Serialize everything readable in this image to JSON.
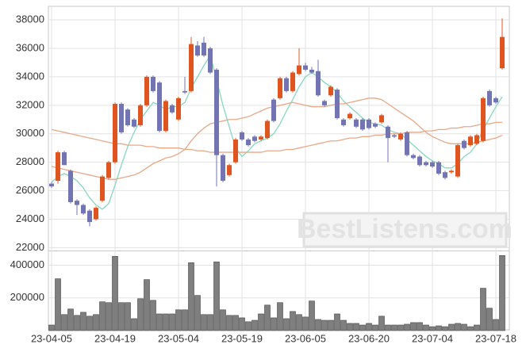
{
  "chart_data": {
    "type": "candlestick",
    "categories": [
      "23-04-05",
      null,
      null,
      null,
      null,
      null,
      null,
      null,
      null,
      null,
      "23-04-19",
      null,
      null,
      null,
      null,
      null,
      null,
      null,
      null,
      null,
      "23-05-04",
      null,
      null,
      null,
      null,
      null,
      null,
      null,
      null,
      null,
      "23-05-19",
      null,
      null,
      null,
      null,
      null,
      null,
      null,
      null,
      null,
      "23-06-05",
      null,
      null,
      null,
      null,
      null,
      null,
      null,
      null,
      null,
      "23-06-20",
      null,
      null,
      null,
      null,
      null,
      null,
      null,
      null,
      null,
      "23-07-04",
      null,
      null,
      null,
      null,
      null,
      null,
      null,
      null,
      null,
      "23-07-18",
      null
    ],
    "open": [
      26500,
      26700,
      28700,
      27400,
      25300,
      25000,
      24600,
      24000,
      25300,
      26900,
      28000,
      32100,
      31700,
      31000,
      30600,
      32000,
      34000,
      33600,
      30200,
      32000,
      31000,
      33000,
      33000,
      36200,
      36400,
      36000,
      34500,
      28500,
      27100,
      28000,
      30100,
      29600,
      29800,
      29600,
      29700,
      32400,
      32500,
      33900,
      33000,
      34200,
      34800,
      34500,
      34400,
      32300,
      32700,
      33100,
      31000,
      31100,
      31000,
      31000,
      31000,
      30700,
      30800,
      30500,
      29900,
      29600,
      30100,
      28500,
      28400,
      28000,
      28000,
      28000,
      27300,
      27300,
      27000,
      29500,
      29200,
      29300,
      29500,
      33000,
      32500,
      34600
    ],
    "high": [
      26600,
      28800,
      28800,
      27500,
      25400,
      25100,
      24700,
      24900,
      27100,
      28100,
      32200,
      32200,
      31800,
      31100,
      32100,
      34100,
      34100,
      33700,
      32400,
      32100,
      32600,
      34000,
      36800,
      36500,
      36800,
      36100,
      34600,
      28600,
      27900,
      29700,
      30200,
      29700,
      29900,
      29900,
      31000,
      32500,
      34000,
      34000,
      34400,
      36000,
      35000,
      34700,
      35200,
      32400,
      33400,
      33200,
      31100,
      31500,
      31100,
      31100,
      31100,
      30800,
      31400,
      30600,
      30000,
      30100,
      30200,
      28600,
      28500,
      28100,
      28100,
      28100,
      27400,
      27500,
      29300,
      29600,
      29900,
      30000,
      32600,
      33100,
      32600,
      38100
    ],
    "low": [
      26200,
      26500,
      27800,
      25100,
      24300,
      24300,
      23500,
      23900,
      25200,
      26800,
      27900,
      30000,
      30500,
      30400,
      30500,
      31900,
      32900,
      30100,
      30100,
      31400,
      30900,
      32800,
      32900,
      35400,
      35400,
      34200,
      26300,
      26600,
      27000,
      27900,
      29500,
      29100,
      29400,
      29500,
      29600,
      30800,
      32400,
      32900,
      32900,
      34100,
      34400,
      34200,
      32600,
      31900,
      32600,
      31000,
      30500,
      31000,
      30400,
      30200,
      30300,
      30400,
      30700,
      28000,
      29700,
      29500,
      28400,
      28200,
      27700,
      27700,
      27600,
      27100,
      26800,
      27200,
      26900,
      28900,
      29100,
      29200,
      29400,
      31900,
      32100,
      34500
    ],
    "close": [
      26300,
      28700,
      27800,
      25200,
      25000,
      24400,
      23800,
      24800,
      27000,
      28000,
      32100,
      30100,
      30600,
      30500,
      32000,
      34000,
      33000,
      30200,
      32300,
      31500,
      32500,
      32900,
      36300,
      35500,
      35500,
      34300,
      28500,
      26700,
      27800,
      29600,
      29600,
      29200,
      29500,
      29800,
      30900,
      30900,
      33900,
      33000,
      34300,
      34800,
      34500,
      34300,
      32700,
      32000,
      33300,
      31100,
      30600,
      31400,
      30500,
      30300,
      30400,
      30500,
      31300,
      29700,
      29800,
      30000,
      28500,
      28300,
      27800,
      27800,
      27700,
      27200,
      26900,
      27400,
      29200,
      29000,
      29800,
      29900,
      32500,
      32000,
      32200,
      36800
    ],
    "up_color": "#e05420",
    "down_color": "#7274b4",
    "ylim": [
      21800,
      38950
    ],
    "yticks": [
      22000,
      24000,
      26000,
      28000,
      30000,
      32000,
      34000,
      36000,
      38000
    ],
    "moving_averages": [
      {
        "color": "#86d8c0",
        "values": [
          26600,
          27000,
          27200,
          27000,
          26700,
          26200,
          25500,
          25000,
          24700,
          25100,
          26400,
          27800,
          29100,
          30100,
          31000,
          31600,
          32200,
          32000,
          31700,
          31900,
          31900,
          32200,
          33200,
          34000,
          34800,
          35500,
          33800,
          32000,
          30500,
          29000,
          28400,
          28800,
          29300,
          29500,
          29700,
          30000,
          30700,
          31600,
          32400,
          33300,
          34000,
          34300,
          34000,
          33600,
          33300,
          32900,
          32300,
          31900,
          31500,
          31100,
          30800,
          30700,
          30600,
          30300,
          30100,
          30000,
          29600,
          29200,
          28800,
          28400,
          28100,
          27900,
          27600,
          27600,
          27900,
          28400,
          28700,
          29300,
          30300,
          31100,
          31900,
          32600
        ]
      },
      {
        "color": "#e8a888",
        "values": [
          27700,
          27600,
          27500,
          27400,
          27300,
          27200,
          27100,
          27000,
          26900,
          26800,
          26800,
          26900,
          27000,
          27100,
          27300,
          27600,
          27900,
          28100,
          28300,
          28400,
          28600,
          28900,
          29500,
          30000,
          30400,
          30700,
          30800,
          30900,
          31000,
          31000,
          31100,
          31200,
          31400,
          31600,
          31800,
          31900,
          32000,
          32100,
          32200,
          32100,
          32000,
          31900,
          31900,
          31900,
          32000,
          32100,
          32100,
          32200,
          32300,
          32400,
          32500,
          32500,
          32400,
          32100,
          31800,
          31500,
          31200,
          30900,
          30500,
          30100,
          29800,
          29600,
          29400,
          29300,
          29300,
          29300,
          29300,
          29400,
          29500,
          29600,
          29700,
          29900
        ]
      },
      {
        "color": "#e8a888",
        "values": [
          30300,
          30200,
          30100,
          30000,
          29900,
          29800,
          29700,
          29600,
          29500,
          29400,
          29300,
          29300,
          29200,
          29200,
          29200,
          29100,
          29100,
          29000,
          29000,
          29000,
          29000,
          28900,
          28900,
          28800,
          28800,
          28700,
          28700,
          28700,
          28700,
          28700,
          28700,
          28700,
          28700,
          28700,
          28800,
          28800,
          28800,
          28900,
          28900,
          29000,
          29100,
          29200,
          29300,
          29400,
          29500,
          29500,
          29600,
          29700,
          29700,
          29800,
          29800,
          29900,
          29900,
          30000,
          30000,
          30000,
          30100,
          30100,
          30100,
          30200,
          30200,
          30300,
          30300,
          30400,
          30400,
          30500,
          30500,
          30600,
          30700,
          30700,
          30800,
          30800
        ]
      }
    ],
    "volume": {
      "color": "#7f7f7f",
      "axis": "y2",
      "values": [
        34000,
        317000,
        98000,
        132000,
        93000,
        112000,
        88000,
        98000,
        176000,
        171000,
        454000,
        171000,
        171000,
        73000,
        195000,
        312000,
        185000,
        102000,
        102000,
        102000,
        127000,
        127000,
        415000,
        215000,
        98000,
        98000,
        420000,
        127000,
        93000,
        93000,
        78000,
        54000,
        63000,
        102000,
        156000,
        78000,
        171000,
        73000,
        117000,
        98000,
        83000,
        181000,
        68000,
        63000,
        63000,
        102000,
        63000,
        44000,
        44000,
        34000,
        44000,
        34000,
        88000,
        34000,
        34000,
        34000,
        39000,
        49000,
        49000,
        34000,
        24000,
        29000,
        24000,
        39000,
        44000,
        39000,
        24000,
        34000,
        259000,
        137000,
        68000,
        459000
      ]
    },
    "y2lim": [
      0,
      480000
    ],
    "y2ticks": [
      200000,
      400000
    ],
    "grid": true,
    "watermark": "BestListens.com"
  }
}
